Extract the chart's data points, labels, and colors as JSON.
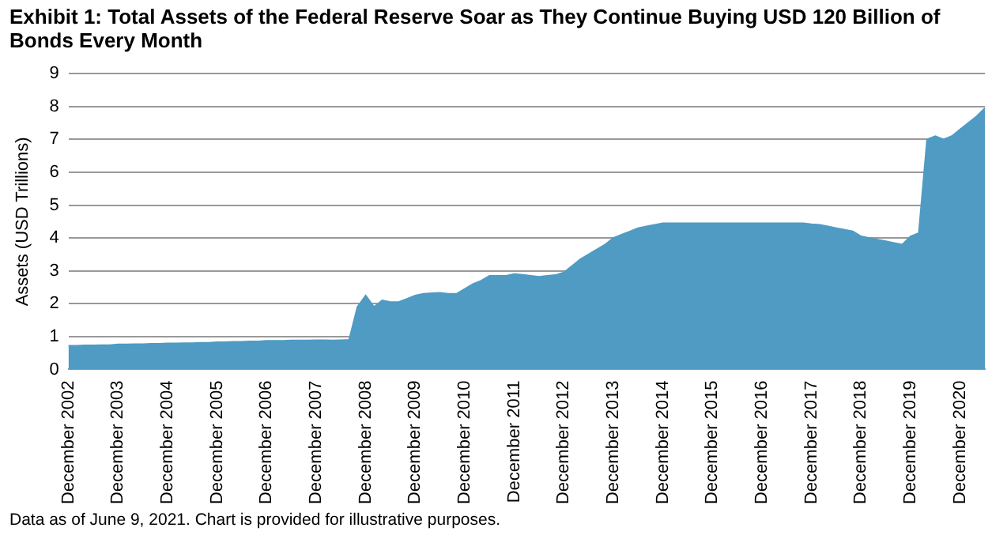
{
  "chart_data": {
    "type": "area",
    "title": "Exhibit 1: Total Assets of the Federal Reserve Soar as They Continue Buying USD 120 Billion of Bonds Every Month",
    "ylabel": "Assets (USD Trillions)",
    "categories": [
      "December 2002",
      null,
      null,
      null,
      null,
      null,
      "December 2003",
      null,
      null,
      null,
      null,
      null,
      "December 2004",
      null,
      null,
      null,
      null,
      null,
      "December 2005",
      null,
      null,
      null,
      null,
      null,
      "December 2006",
      null,
      null,
      null,
      null,
      null,
      "December 2007",
      null,
      null,
      null,
      null,
      null,
      "December 2008",
      null,
      null,
      null,
      null,
      null,
      "December 2009",
      null,
      null,
      null,
      null,
      null,
      "December 2010",
      null,
      null,
      null,
      null,
      null,
      "December 2011",
      null,
      null,
      null,
      null,
      null,
      "December 2012",
      null,
      null,
      null,
      null,
      null,
      "December 2013",
      null,
      null,
      null,
      null,
      null,
      "December 2014",
      null,
      null,
      null,
      null,
      null,
      "December 2015",
      null,
      null,
      null,
      null,
      null,
      "December 2016",
      null,
      null,
      null,
      null,
      null,
      "December 2017",
      null,
      null,
      null,
      null,
      null,
      "December 2018",
      null,
      null,
      null,
      null,
      null,
      "December 2019",
      null,
      null,
      null,
      null,
      null,
      "December 2020",
      null,
      null,
      null
    ],
    "values": [
      0.72,
      0.72,
      0.73,
      0.73,
      0.74,
      0.74,
      0.76,
      0.76,
      0.77,
      0.77,
      0.78,
      0.78,
      0.79,
      0.79,
      0.8,
      0.8,
      0.81,
      0.81,
      0.83,
      0.83,
      0.84,
      0.84,
      0.85,
      0.85,
      0.87,
      0.87,
      0.87,
      0.88,
      0.88,
      0.88,
      0.89,
      0.89,
      0.88,
      0.89,
      0.9,
      1.9,
      2.25,
      1.9,
      2.1,
      2.05,
      2.05,
      2.15,
      2.25,
      2.3,
      2.32,
      2.33,
      2.3,
      2.3,
      2.45,
      2.6,
      2.7,
      2.85,
      2.85,
      2.85,
      2.9,
      2.88,
      2.85,
      2.82,
      2.85,
      2.87,
      2.95,
      3.15,
      3.35,
      3.5,
      3.65,
      3.8,
      4.0,
      4.1,
      4.2,
      4.3,
      4.35,
      4.4,
      4.45,
      4.45,
      4.45,
      4.45,
      4.45,
      4.45,
      4.45,
      4.45,
      4.45,
      4.45,
      4.45,
      4.45,
      4.45,
      4.45,
      4.45,
      4.45,
      4.45,
      4.45,
      4.42,
      4.4,
      4.35,
      4.3,
      4.25,
      4.2,
      4.05,
      4.0,
      3.95,
      3.9,
      3.85,
      3.8,
      4.05,
      4.15,
      7.0,
      7.1,
      7.0,
      7.1,
      7.3,
      7.5,
      7.7,
      7.95
    ],
    "color": "#4f9bc3",
    "ylim": [
      0,
      9
    ],
    "yticks": [
      0,
      1,
      2,
      3,
      4,
      5,
      6,
      7,
      8,
      9
    ],
    "grid": "y",
    "legend": false,
    "annotations": [
      "Data as of June 9, 2021. Chart is provided for illustrative purposes."
    ]
  }
}
